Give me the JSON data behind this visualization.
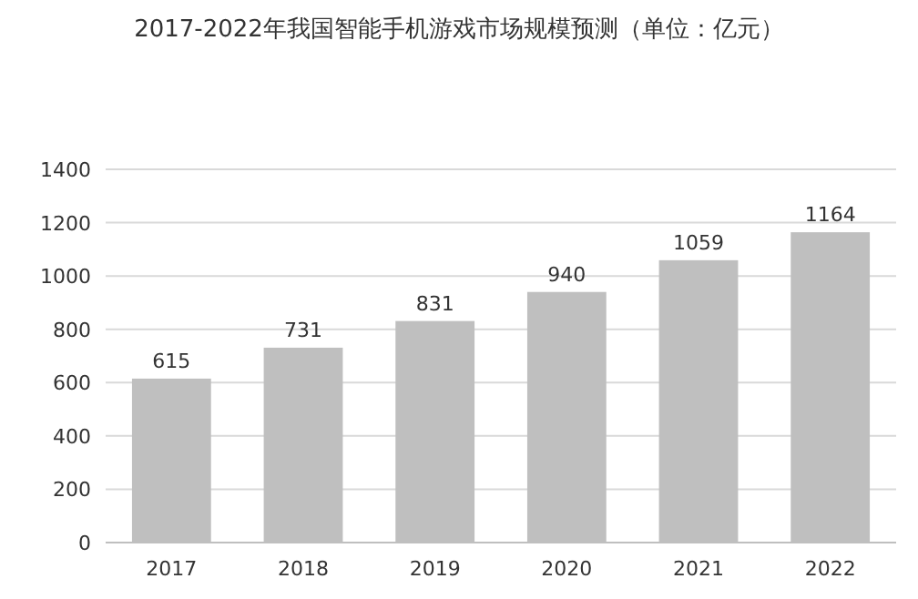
{
  "chart_data": {
    "type": "bar",
    "title": "2017-2022年我国智能手机游戏市场规模预测（单位：亿元）",
    "categories": [
      "2017",
      "2018",
      "2019",
      "2020",
      "2021",
      "2022"
    ],
    "values": [
      615,
      731,
      831,
      940,
      1059,
      1164
    ],
    "color": "#bfbfbf",
    "ylim": [
      0,
      1400
    ],
    "yticks": [
      0,
      200,
      400,
      600,
      800,
      1000,
      1200,
      1400
    ],
    "grid": "y",
    "data_labels": true
  }
}
